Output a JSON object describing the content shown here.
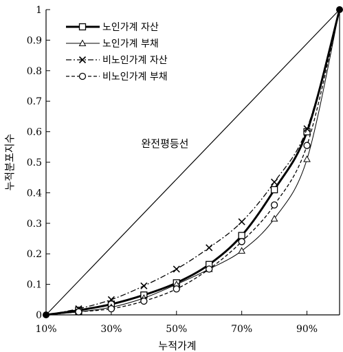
{
  "chart_data": {
    "type": "line",
    "xlabel": "누적가계",
    "ylabel": "누적분포지수",
    "xlim": [
      0.1,
      1.0
    ],
    "ylim": [
      0,
      1
    ],
    "x_ticks": [
      {
        "value": 0.1,
        "label": "10%"
      },
      {
        "value": 0.3,
        "label": "30%"
      },
      {
        "value": 0.5,
        "label": "50%"
      },
      {
        "value": 0.7,
        "label": "70%"
      },
      {
        "value": 0.9,
        "label": "90%"
      }
    ],
    "y_ticks": [
      {
        "value": 0,
        "label": "0"
      },
      {
        "value": 0.1,
        "label": "0.1"
      },
      {
        "value": 0.2,
        "label": "0.2"
      },
      {
        "value": 0.3,
        "label": "0.3"
      },
      {
        "value": 0.4,
        "label": "0.4"
      },
      {
        "value": 0.5,
        "label": "0.5"
      },
      {
        "value": 0.6,
        "label": "0.6"
      },
      {
        "value": 0.7,
        "label": "0.7"
      },
      {
        "value": 0.8,
        "label": "0.8"
      },
      {
        "value": 0.9,
        "label": "0.9"
      },
      {
        "value": 1,
        "label": "1"
      }
    ],
    "x": [
      0.1,
      0.2,
      0.3,
      0.4,
      0.5,
      0.6,
      0.7,
      0.8,
      0.9,
      1.0
    ],
    "series": [
      {
        "name": "노인가계 자산",
        "values": [
          0.0,
          0.015,
          0.035,
          0.065,
          0.105,
          0.165,
          0.26,
          0.41,
          0.6,
          1.0
        ],
        "marker": "square",
        "dash": "solid",
        "width": 3
      },
      {
        "name": "노인가계 부채",
        "values": [
          0.0,
          0.01,
          0.025,
          0.055,
          0.1,
          0.15,
          0.21,
          0.315,
          0.51,
          1.0
        ],
        "marker": "triangle",
        "dash": "solid",
        "width": 1
      },
      {
        "name": "비노인가계 자산",
        "values": [
          0.0,
          0.02,
          0.05,
          0.095,
          0.15,
          0.22,
          0.305,
          0.435,
          0.61,
          1.0
        ],
        "marker": "x",
        "dash": "dashdot",
        "width": 1.3
      },
      {
        "name": "비노인가계 부채",
        "values": [
          0.0,
          0.01,
          0.02,
          0.045,
          0.085,
          0.15,
          0.24,
          0.36,
          0.555,
          1.0
        ],
        "marker": "circle",
        "dash": "dashed",
        "width": 1.3
      }
    ],
    "reference_line": {
      "label": "완전평등선",
      "from": [
        0.1,
        0
      ],
      "to": [
        1.0,
        1.0
      ]
    },
    "legend_position": "top-left",
    "grid": false
  }
}
